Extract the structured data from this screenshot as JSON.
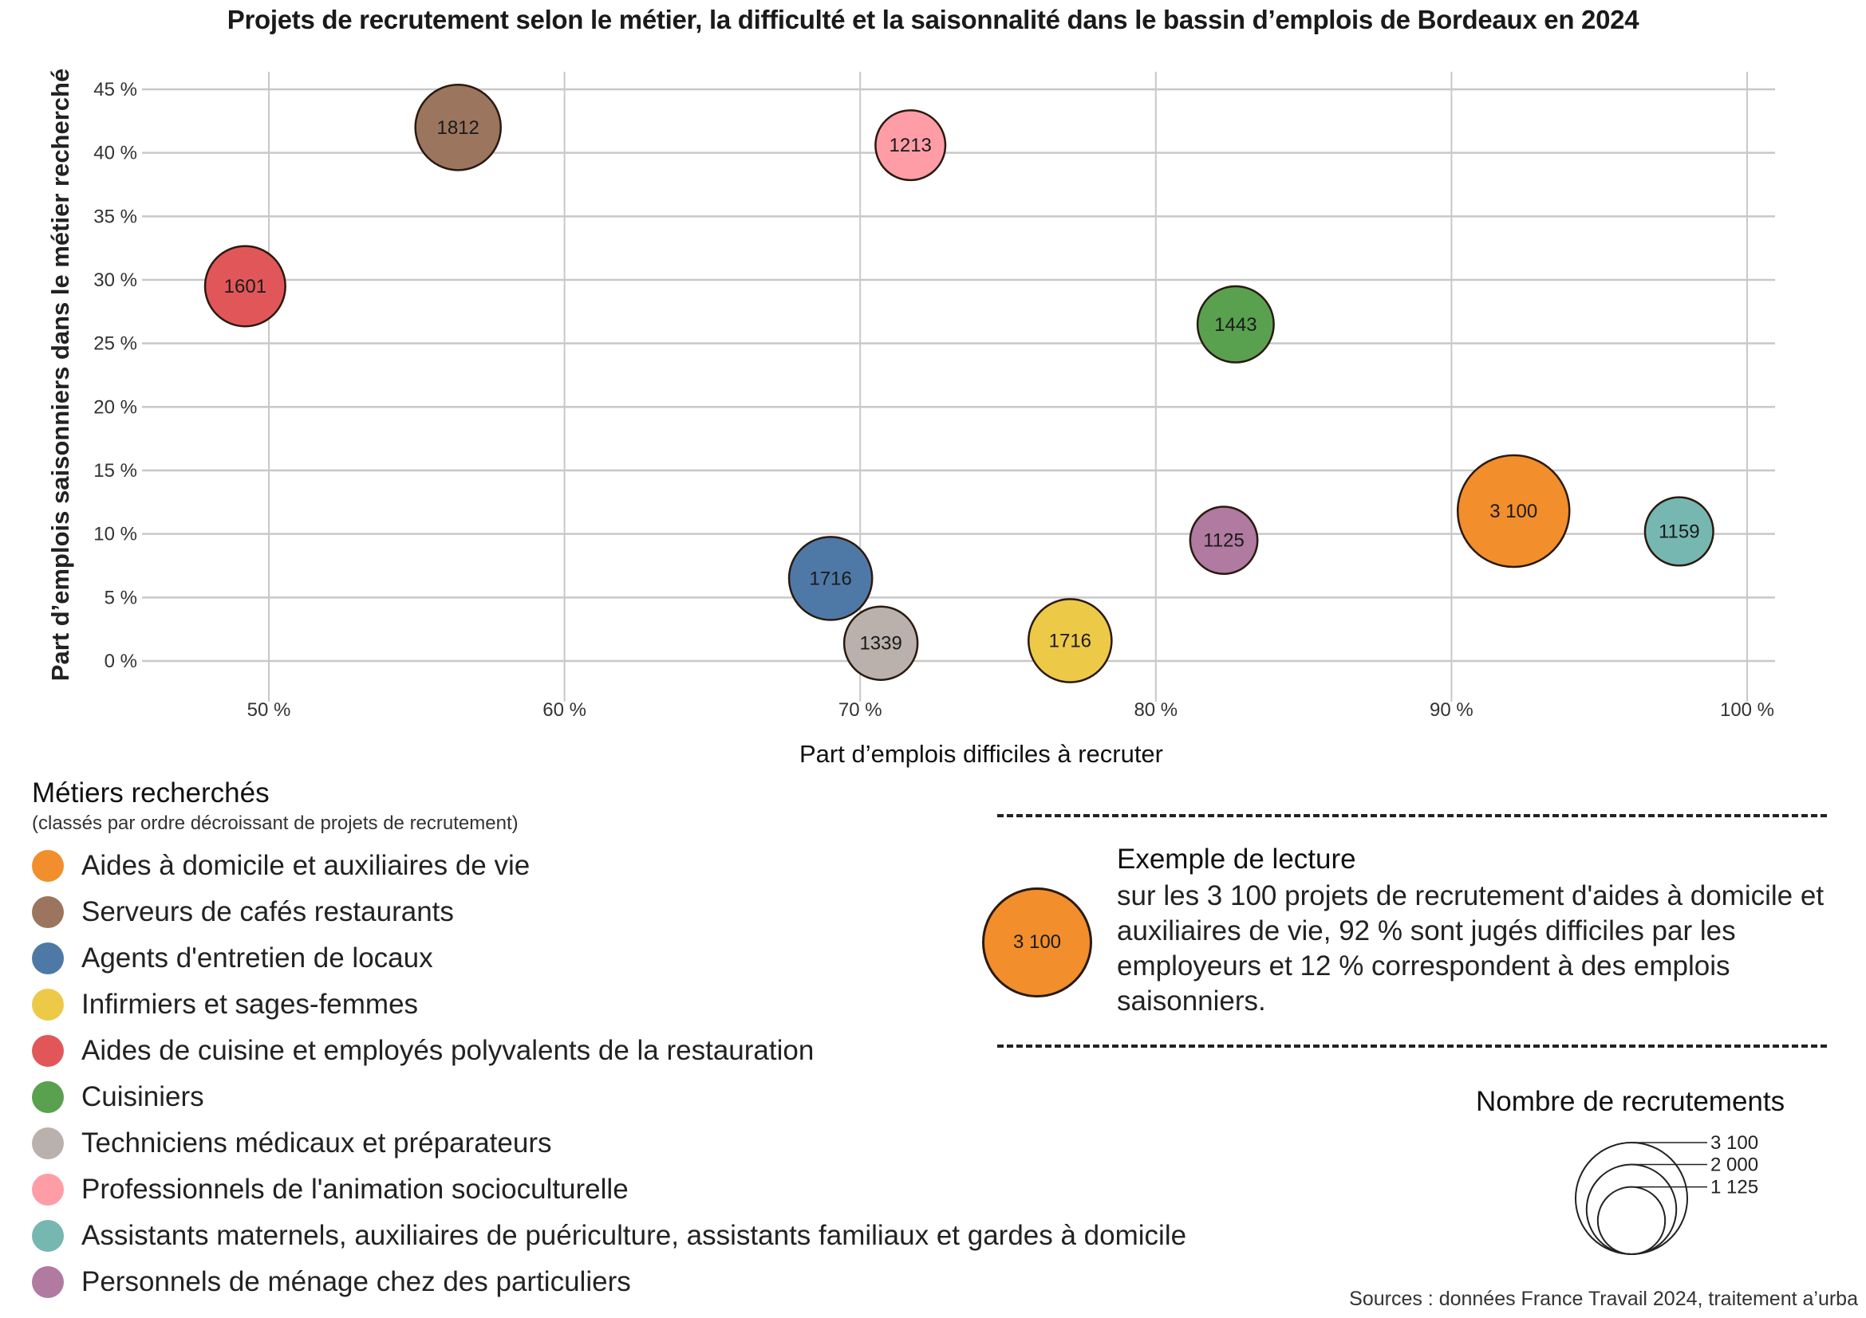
{
  "chart_data": {
    "type": "scatter",
    "subtype": "bubble",
    "title": "Projets de recrutement selon le métier, la difficulté et la saisonnalité dans le bassin d’emplois de Bordeaux en 2024",
    "xlabel": "Part d’emplois difficiles à recruter",
    "ylabel": "Part d’emplois saisonniers dans  le métier recherché",
    "xlim": [
      45,
      100
    ],
    "ylim": [
      -2,
      45
    ],
    "x_ticks": [
      50,
      60,
      70,
      80,
      90,
      100
    ],
    "x_tick_labels": [
      "50 %",
      "60 %",
      "70 %",
      "80 %",
      "90 %",
      "100 %"
    ],
    "y_ticks": [
      0,
      5,
      10,
      15,
      20,
      25,
      30,
      35,
      40,
      45
    ],
    "y_tick_labels": [
      "0 %",
      "5 %",
      "10 %",
      "15 %",
      "20 %",
      "25 %",
      "30 %",
      "35 %",
      "40 %",
      "45 %"
    ],
    "grid": true,
    "size_max_value": 3100,
    "points": [
      {
        "name": "Aides à domicile et auxiliaires de vie",
        "x": 92.1,
        "y": 11.8,
        "size": 3100,
        "label": "3 100",
        "color": "#F28E2B"
      },
      {
        "name": "Serveurs de cafés restaurants",
        "x": 56.4,
        "y": 42.0,
        "size": 1812,
        "label": "1812",
        "color": "#9C755F"
      },
      {
        "name": "Agents d'entretien de locaux",
        "x": 69.0,
        "y": 6.5,
        "size": 1716,
        "label": "1716",
        "color": "#4E79A7"
      },
      {
        "name": "Infirmiers et sages-femmes",
        "x": 77.1,
        "y": 1.6,
        "size": 1716,
        "label": "1716",
        "color": "#EDC948"
      },
      {
        "name": "Aides de cuisine et employés polyvalents de la restauration",
        "x": 49.2,
        "y": 29.5,
        "size": 1601,
        "label": "1601",
        "color": "#E15759"
      },
      {
        "name": "Cuisiniers",
        "x": 82.7,
        "y": 26.5,
        "size": 1443,
        "label": "1443",
        "color": "#59A14F"
      },
      {
        "name": "Techniciens médicaux et préparateurs",
        "x": 70.7,
        "y": 1.4,
        "size": 1339,
        "label": "1339",
        "color": "#BAB0AC"
      },
      {
        "name": "Professionnels de l'animation socioculturelle",
        "x": 71.7,
        "y": 40.6,
        "size": 1213,
        "label": "1213",
        "color": "#FF9DA7"
      },
      {
        "name": "Assistants maternels, auxiliaires de puériculture, assistants familiaux et gardes à domicile",
        "x": 97.7,
        "y": 10.2,
        "size": 1159,
        "label": "1159",
        "color": "#76B7B2"
      },
      {
        "name": "Personnels de ménage chez des particuliers",
        "x": 82.3,
        "y": 9.5,
        "size": 1125,
        "label": "1125",
        "color": "#B07AA1"
      }
    ]
  },
  "legend": {
    "title": "Métiers recherchés",
    "subtitle": "(classés par ordre décroissant de projets de recrutement)"
  },
  "example": {
    "title": "Exemple de lecture",
    "text": "sur les 3 100 projets de recrutement d'aides à domicile et auxiliaires de vie, 92 % sont jugés difficiles par les employeurs et 12 % correspondent à des emplois saisonniers.",
    "bubble_label": "3 100",
    "bubble_color": "#F28E2B"
  },
  "size_legend": {
    "title": "Nombre de recrutements",
    "values": [
      3100,
      2000,
      1125
    ],
    "labels": [
      "3 100",
      "2 000",
      "1 125"
    ]
  },
  "source": "Sources : données France Travail 2024, traitement a’urba",
  "colors": {
    "grid": "#c8c8c8",
    "stroke": "#2a1a10"
  }
}
